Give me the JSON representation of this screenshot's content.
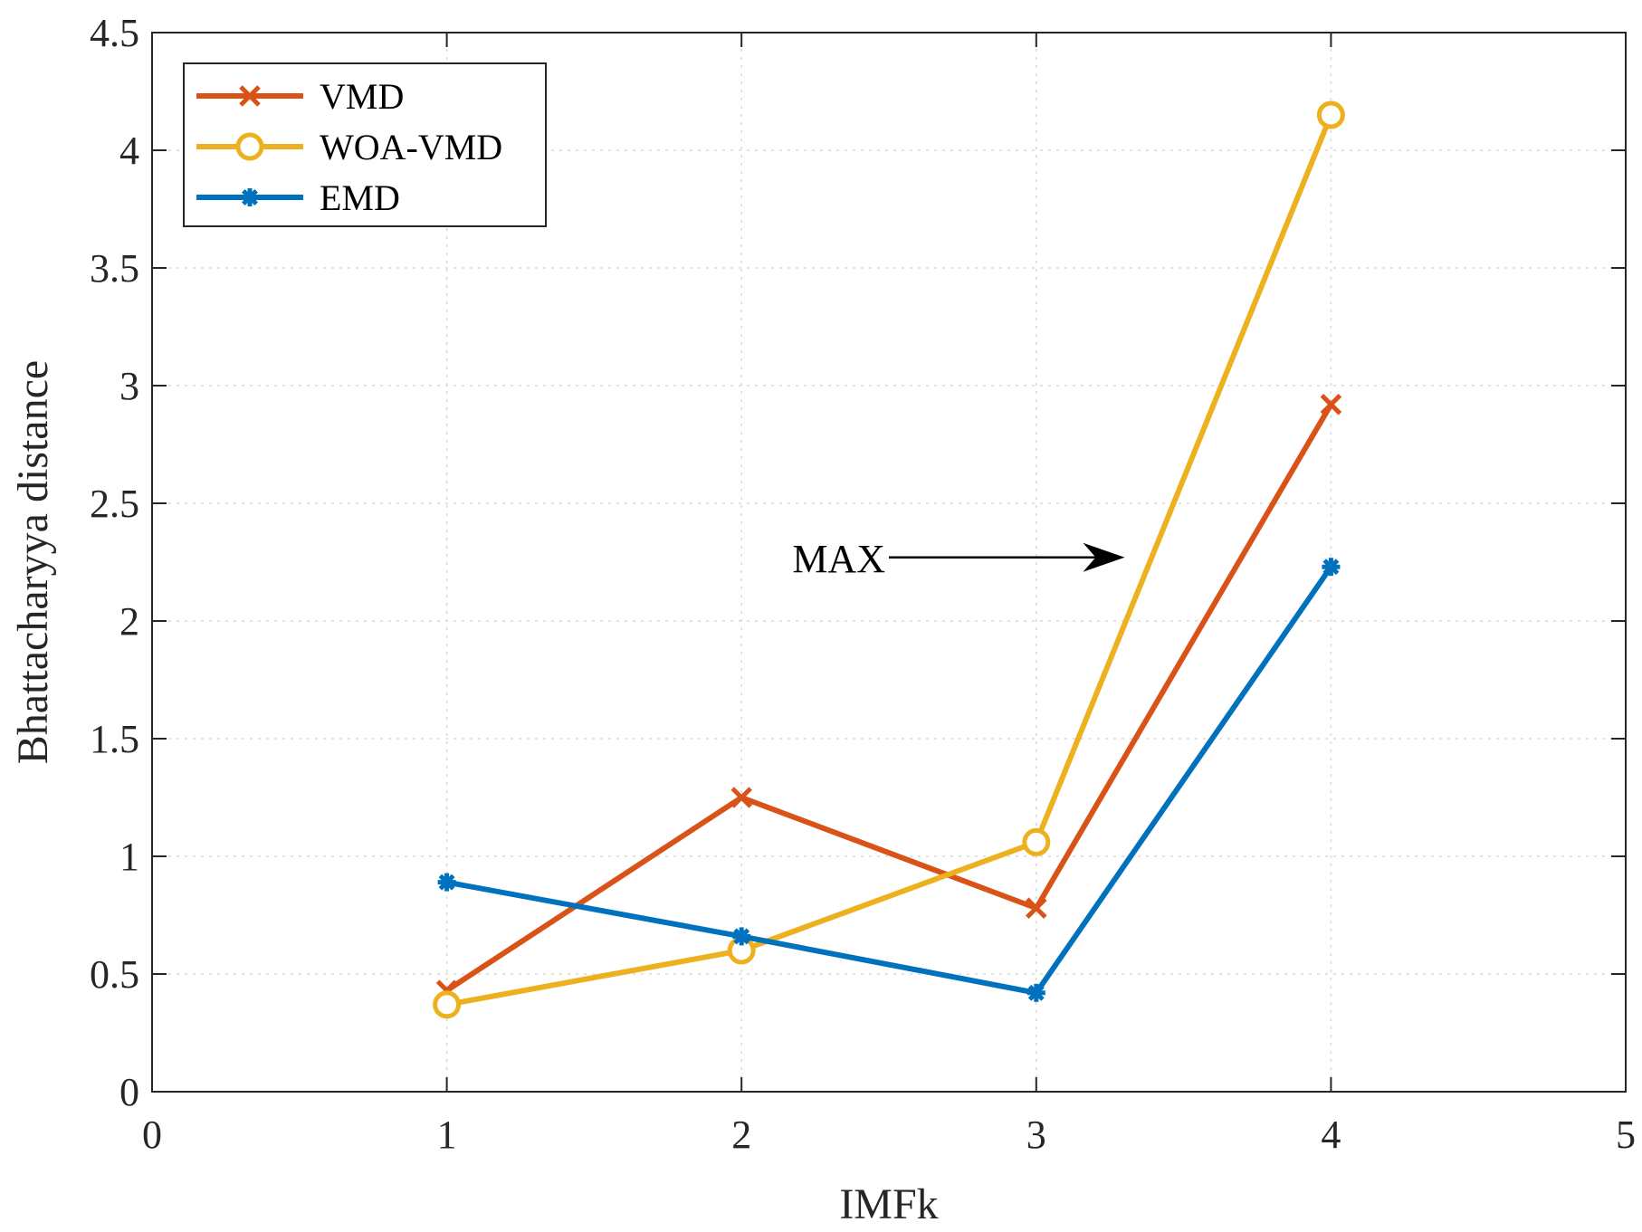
{
  "chart_data": {
    "type": "line",
    "title": "",
    "xlabel": "IMFk",
    "ylabel": "Bhattacharyya distance",
    "xlim": [
      0,
      5
    ],
    "ylim": [
      0,
      4.5
    ],
    "x_ticks": [
      "0",
      "1",
      "2",
      "3",
      "4",
      "5"
    ],
    "y_ticks": [
      "0",
      "0.5",
      "1",
      "1.5",
      "2",
      "2.5",
      "3",
      "3.5",
      "4",
      "4.5"
    ],
    "grid": true,
    "legend_position": "top-left",
    "x": [
      1,
      2,
      3,
      4
    ],
    "series": [
      {
        "name": "VMD",
        "values": [
          0.43,
          1.25,
          0.78,
          2.92
        ],
        "color": "#D95319",
        "marker": "x"
      },
      {
        "name": "WOA-VMD",
        "values": [
          0.37,
          0.6,
          1.06,
          4.15
        ],
        "color": "#EDB120",
        "marker": "o"
      },
      {
        "name": "EMD",
        "values": [
          0.89,
          0.66,
          0.42,
          2.23
        ],
        "color": "#0072BD",
        "marker": "*"
      }
    ],
    "annotations": [
      {
        "text": "MAX",
        "arrow_from": [
          2.5,
          2.27
        ],
        "arrow_to": [
          3.3,
          2.27
        ]
      }
    ]
  }
}
